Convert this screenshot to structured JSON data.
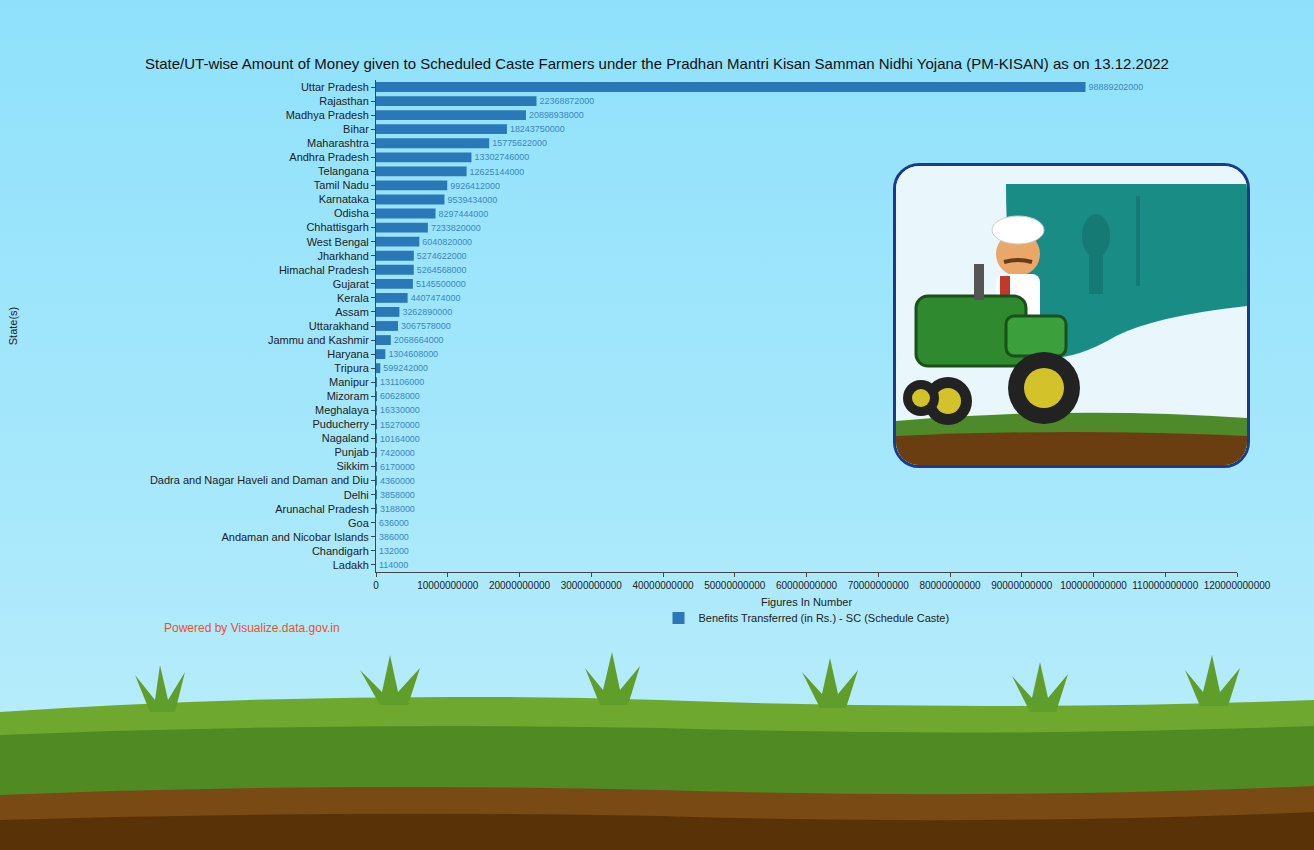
{
  "chart_data": {
    "type": "bar",
    "orientation": "horizontal",
    "title": "State/UT-wise Amount of Money given to Scheduled Caste Farmers under the Pradhan Mantri Kisan Samman Nidhi Yojana (PM-KISAN) as on 13.12.2022",
    "xlabel": "Figures In Number",
    "ylabel": "State(s)",
    "annotations": [
      "Powered by Visualize.data.gov.in"
    ],
    "categories": [
      "Uttar Pradesh",
      "Rajasthan",
      "Madhya Pradesh",
      "Bihar",
      "Maharashtra",
      "Andhra Pradesh",
      "Telangana",
      "Tamil Nadu",
      "Karnataka",
      "Odisha",
      "Chhattisgarh",
      "West Bengal",
      "Jharkhand",
      "Himachal Pradesh",
      "Gujarat",
      "Kerala",
      "Assam",
      "Uttarakhand",
      "Jammu and Kashmir",
      "Haryana",
      "Tripura",
      "Manipur",
      "Mizoram",
      "Meghalaya",
      "Puducherry",
      "Nagaland",
      "Punjab",
      "Sikkim",
      "Dadra and Nagar Haveli and Daman and Diu",
      "Delhi",
      "Arunachal Pradesh",
      "Goa",
      "Andaman and Nicobar Islands",
      "Chandigarh",
      "Ladakh"
    ],
    "series": [
      {
        "name": "Benefits Transferred (in Rs.) - SC (Schedule Caste)",
        "color": "#2a78b8",
        "values": [
          98889202000,
          22368872000,
          20898938000,
          18243750000,
          15775622000,
          13302746000,
          12625144000,
          9926412000,
          9539434000,
          8297444000,
          7233820000,
          6040820000,
          5274622000,
          5264568000,
          5145500000,
          4407474000,
          3262890000,
          3067578000,
          2068664000,
          1304608000,
          599242000,
          131106000,
          60628000,
          16330000,
          15270000,
          10164000,
          7420000,
          6170000,
          4360000,
          3858000,
          3188000,
          636000,
          386000,
          132000,
          114000
        ]
      }
    ],
    "xlim": [
      0,
      120000000000
    ],
    "xticks": [
      0,
      10000000000,
      20000000000,
      30000000000,
      40000000000,
      50000000000,
      60000000000,
      70000000000,
      80000000000,
      90000000000,
      100000000000,
      110000000000,
      120000000000
    ],
    "grid": false,
    "legend": "bottom",
    "data_labels": true
  }
}
